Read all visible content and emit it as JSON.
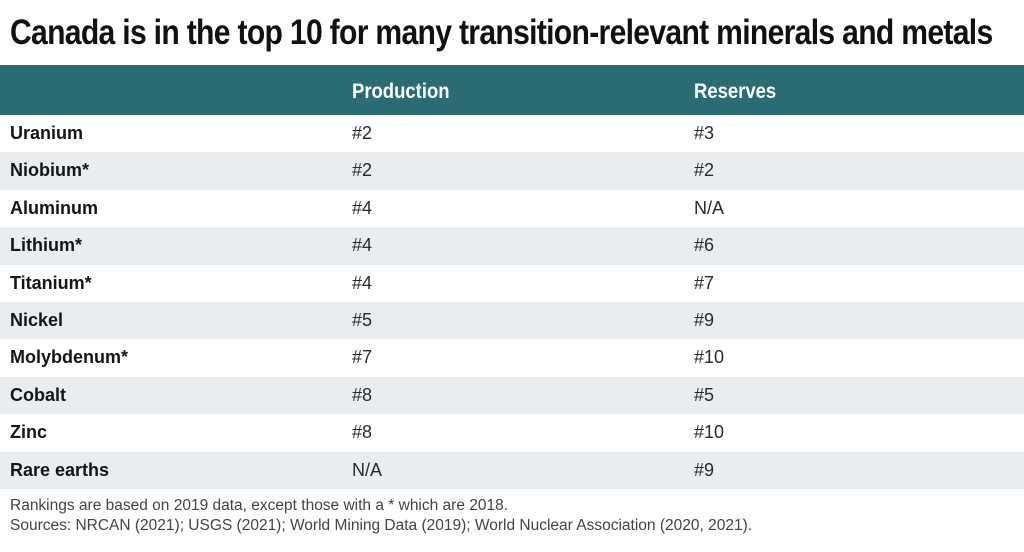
{
  "chart_data": {
    "type": "table",
    "title": "Canada is in the top 10 for many transition-relevant minerals and metals",
    "columns": [
      "",
      "Production",
      "Reserves"
    ],
    "rows": [
      {
        "mineral": "Uranium",
        "production": "#2",
        "reserves": "#3"
      },
      {
        "mineral": "Niobium*",
        "production": "#2",
        "reserves": "#2"
      },
      {
        "mineral": "Aluminum",
        "production": "#4",
        "reserves": "N/A"
      },
      {
        "mineral": "Lithium*",
        "production": "#4",
        "reserves": "#6"
      },
      {
        "mineral": "Titanium*",
        "production": "#4",
        "reserves": "#7"
      },
      {
        "mineral": "Nickel",
        "production": "#5",
        "reserves": "#9"
      },
      {
        "mineral": "Molybdenum*",
        "production": "#7",
        "reserves": "#10"
      },
      {
        "mineral": "Cobalt",
        "production": "#8",
        "reserves": "#5"
      },
      {
        "mineral": "Zinc",
        "production": "#8",
        "reserves": "#10"
      },
      {
        "mineral": "Rare earths",
        "production": "N/A",
        "reserves": "#9"
      }
    ],
    "notes": [
      "Rankings are based on 2019 data, except those with a * which are 2018.",
      "Sources: NRCAN (2021); USGS (2021); World Mining Data (2019); World Nuclear Association (2020, 2021)."
    ]
  },
  "colors": {
    "header_bg": "#2b6b73",
    "header_text": "#ffffff",
    "alt_row_bg": "#e9edf0"
  }
}
